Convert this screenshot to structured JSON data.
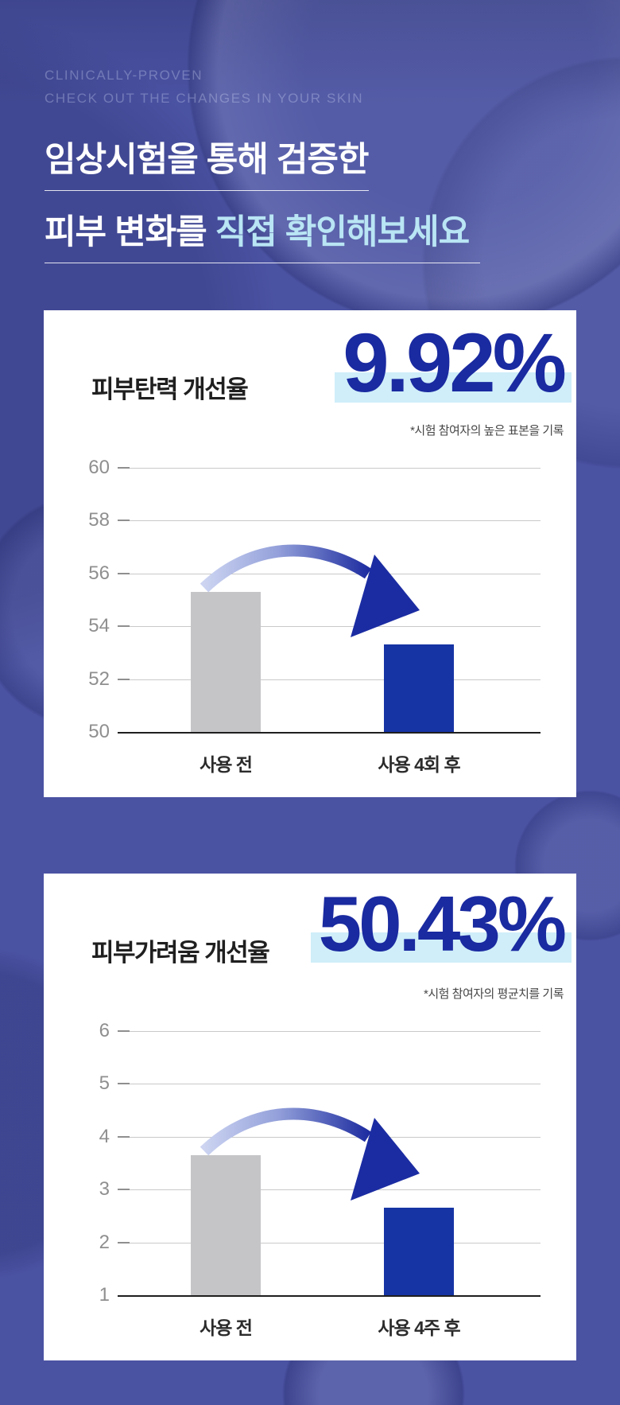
{
  "header": {
    "eyebrow_line1": "CLINICALLY-PROVEN",
    "eyebrow_line2": "CHECK OUT THE CHANGES IN YOUR SKIN",
    "title_line1": "임상시험을 통해 검증한",
    "title_line2_prefix": "피부 변화를 ",
    "title_line2_accent": "직접 확인해보세요",
    "accent_color": "#b9e5f4"
  },
  "chart_data": [
    {
      "type": "bar",
      "title": "피부탄력 개선율",
      "highlight_value": "9.92%",
      "note": "*시험 참여자의 높은 표본을 기록",
      "categories": [
        "사용 전",
        "사용 4회 후"
      ],
      "values": [
        55.3,
        53.3
      ],
      "ylim": [
        50,
        60
      ],
      "yticks": [
        50,
        52,
        54,
        56,
        58,
        60
      ],
      "bar_colors": [
        "#c5c5c7",
        "#1634a4"
      ],
      "grid": true,
      "legend": "none",
      "annotation": "decrease-arrow"
    },
    {
      "type": "bar",
      "title": "피부가려움 개선율",
      "highlight_value": "50.43%",
      "note": "*시험 참여자의 평균치를 기록",
      "categories": [
        "사용 전",
        "사용 4주 후"
      ],
      "values": [
        3.65,
        2.65
      ],
      "ylim": [
        1,
        6
      ],
      "yticks": [
        1,
        2,
        3,
        4,
        5,
        6
      ],
      "bar_colors": [
        "#c5c5c7",
        "#1634a4"
      ],
      "grid": true,
      "legend": "none",
      "annotation": "decrease-arrow"
    }
  ],
  "colors": {
    "page_background": "#4a52a2",
    "card_background": "#ffffff",
    "big_number_blue": "#1a2aa0",
    "highlight_band": "#cfeef9",
    "bar_gray": "#c5c5c7",
    "bar_blue": "#1634a4",
    "baseline": "#1f1f1f",
    "gridline": "#c9c9c9"
  }
}
